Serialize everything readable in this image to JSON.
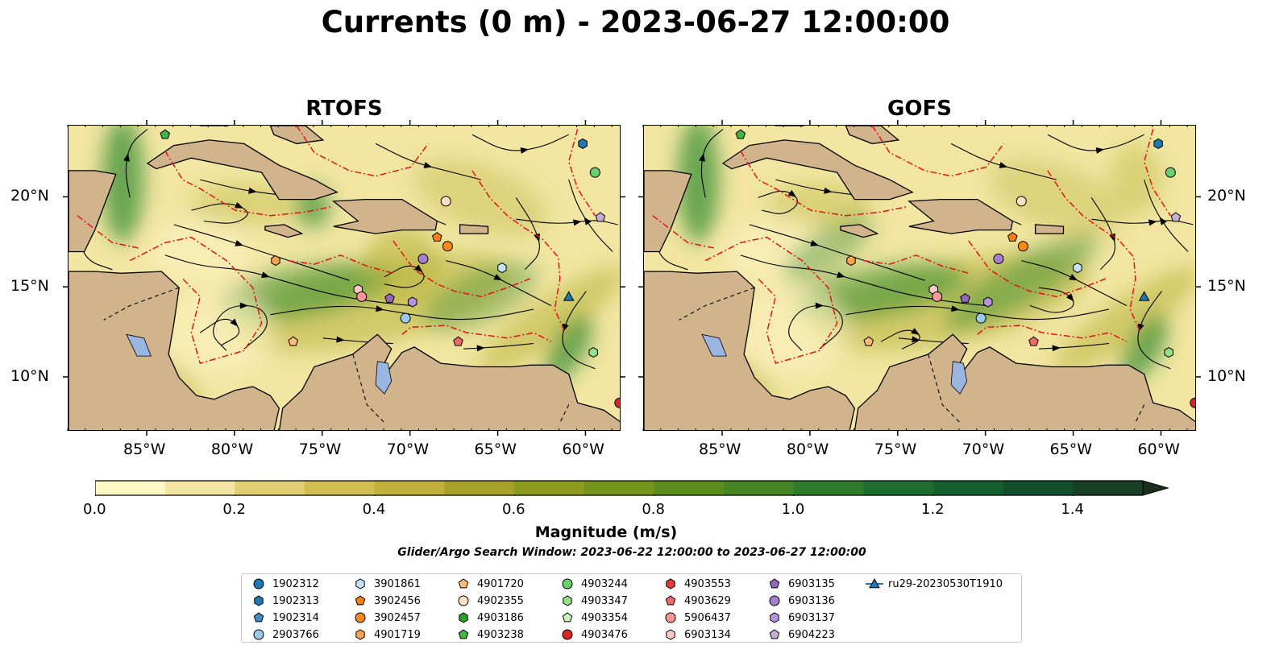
{
  "figure": {
    "title": "Currents (0 m) - 2023-06-27 12:00:00",
    "panels": [
      {
        "id": "rtofs",
        "title": "RTOFS"
      },
      {
        "id": "gofs",
        "title": "GOFS"
      }
    ]
  },
  "map": {
    "lon_range": [
      -89.5,
      -58.0
    ],
    "lat_range": [
      7.0,
      24.0
    ],
    "lon_ticks": [
      {
        "value": -85,
        "label": "85°W"
      },
      {
        "value": -80,
        "label": "80°W"
      },
      {
        "value": -75,
        "label": "75°W"
      },
      {
        "value": -70,
        "label": "70°W"
      },
      {
        "value": -65,
        "label": "65°W"
      },
      {
        "value": -60,
        "label": "60°W"
      }
    ],
    "lat_ticks": [
      {
        "value": 20,
        "label": "20°N"
      },
      {
        "value": 15,
        "label": "15°N"
      },
      {
        "value": 10,
        "label": "10°N"
      }
    ],
    "colors": {
      "land": "#d2b48c",
      "ocean_low": "#f2e6a2",
      "ocean_mid": "#b8b33a",
      "ocean_high": "#2f8a2c",
      "eez": "#e0141a",
      "streamlines": "#000000",
      "lakes": "#9ab6e0"
    }
  },
  "colorbar": {
    "label": "Magnitude (m/s)",
    "min": 0.0,
    "max": 1.5,
    "extend": "max",
    "colors": [
      "#fff8c4",
      "#f2e6a2",
      "#e3cf73",
      "#d2bd53",
      "#c3b03c",
      "#a9a22a",
      "#8c9a20",
      "#74951c",
      "#5b8c1c",
      "#468424",
      "#2f7a2c",
      "#1d6d2f",
      "#15602e",
      "#134f2b",
      "#173f25",
      "#1b2e1c"
    ],
    "tick_labels": [
      {
        "value": 0.0,
        "label": "0.0"
      },
      {
        "value": 0.2,
        "label": "0.2"
      },
      {
        "value": 0.4,
        "label": "0.4"
      },
      {
        "value": 0.6,
        "label": "0.6"
      },
      {
        "value": 0.8,
        "label": "0.8"
      },
      {
        "value": 1.0,
        "label": "1.0"
      },
      {
        "value": 1.2,
        "label": "1.2"
      },
      {
        "value": 1.4,
        "label": "1.4"
      }
    ]
  },
  "search_window": "Glider/Argo Search Window: 2023-06-22 12:00:00 to 2023-06-27 12:00:00",
  "legend": [
    {
      "label": "1902312",
      "marker": "circle",
      "color": "#1f77b4"
    },
    {
      "label": "1902313",
      "marker": "hexagon",
      "color": "#1f77b4"
    },
    {
      "label": "1902314",
      "marker": "pentagon",
      "color": "#3f8bc6"
    },
    {
      "label": "2903766",
      "marker": "circle",
      "color": "#9ecae9"
    },
    {
      "label": "3901861",
      "marker": "hexagon",
      "color": "#c6e2f7"
    },
    {
      "label": "3902456",
      "marker": "pentagon",
      "color": "#ff7f0e"
    },
    {
      "label": "3902457",
      "marker": "circle",
      "color": "#ff8a1c"
    },
    {
      "label": "4901719",
      "marker": "hexagon",
      "color": "#ffa14f"
    },
    {
      "label": "4901720",
      "marker": "pentagon",
      "color": "#ffbb78"
    },
    {
      "label": "4902355",
      "marker": "circle",
      "color": "#ffe0c2"
    },
    {
      "label": "4903186",
      "marker": "hexagon",
      "color": "#2ca02c"
    },
    {
      "label": "4903238",
      "marker": "pentagon",
      "color": "#45b345"
    },
    {
      "label": "4903244",
      "marker": "circle",
      "color": "#6ccf6c"
    },
    {
      "label": "4903347",
      "marker": "hexagon",
      "color": "#98df8a"
    },
    {
      "label": "4903354",
      "marker": "pentagon",
      "color": "#c8f2c0"
    },
    {
      "label": "4903476",
      "marker": "circle",
      "color": "#d62728"
    },
    {
      "label": "4903553",
      "marker": "hexagon",
      "color": "#de3a3b"
    },
    {
      "label": "4903629",
      "marker": "pentagon",
      "color": "#ef6b6b"
    },
    {
      "label": "5906437",
      "marker": "circle",
      "color": "#ff9896"
    },
    {
      "label": "6903134",
      "marker": "hexagon",
      "color": "#ffc9c8"
    },
    {
      "label": "6903135",
      "marker": "pentagon",
      "color": "#9467bd"
    },
    {
      "label": "6903136",
      "marker": "circle",
      "color": "#a67fd0"
    },
    {
      "label": "6903137",
      "marker": "hexagon",
      "color": "#b894e0"
    },
    {
      "label": "6904223",
      "marker": "pentagon",
      "color": "#c5b0d5"
    },
    {
      "label": "ru29-20230530T1910",
      "marker": "triangle-line",
      "color": "#1f77b4"
    }
  ],
  "floats": [
    {
      "label": "4903238",
      "lon": -84.0,
      "lat": 23.5
    },
    {
      "label": "1902313",
      "lon": -60.2,
      "lat": 23.0
    },
    {
      "label": "4903244",
      "lon": -59.5,
      "lat": 21.4
    },
    {
      "label": "4902355",
      "lon": -68.0,
      "lat": 19.8
    },
    {
      "label": "6904223",
      "lon": -59.2,
      "lat": 18.9
    },
    {
      "label": "3902456",
      "lon": -68.5,
      "lat": 17.8
    },
    {
      "label": "3902457",
      "lon": -67.9,
      "lat": 17.3
    },
    {
      "label": "4901719",
      "lon": -77.7,
      "lat": 16.5
    },
    {
      "label": "6903136",
      "lon": -69.3,
      "lat": 16.6
    },
    {
      "label": "3901861",
      "lon": -64.8,
      "lat": 16.1
    },
    {
      "label": "6903134",
      "lon": -73.0,
      "lat": 14.9
    },
    {
      "label": "5906437",
      "lon": -72.8,
      "lat": 14.5
    },
    {
      "label": "6903135",
      "lon": -71.2,
      "lat": 14.4
    },
    {
      "label": "6903137",
      "lon": -69.9,
      "lat": 14.2
    },
    {
      "label": "ru29-20230530T1910",
      "lon": -61.0,
      "lat": 14.5
    },
    {
      "label": "2903766",
      "lon": -70.3,
      "lat": 13.3
    },
    {
      "label": "4901720",
      "lon": -76.7,
      "lat": 12.0
    },
    {
      "label": "4903629",
      "lon": -67.3,
      "lat": 12.0
    },
    {
      "label": "4903347",
      "lon": -59.6,
      "lat": 11.4
    },
    {
      "label": "4903476",
      "lon": -58.1,
      "lat": 8.6
    }
  ]
}
